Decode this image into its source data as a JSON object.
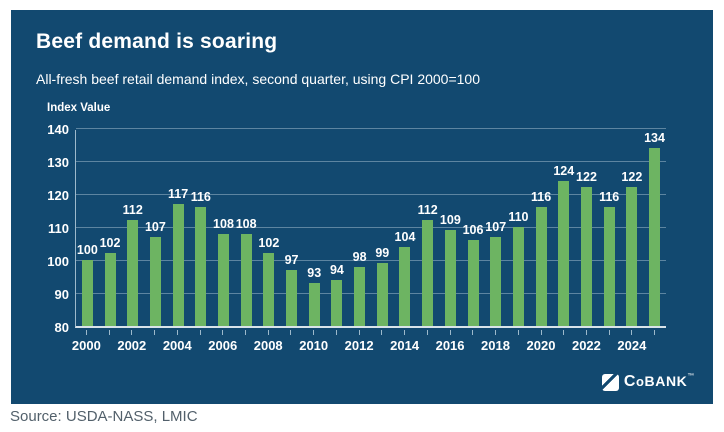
{
  "header": {
    "title": "Beef demand is soaring",
    "subtitle": "All-fresh beef retail demand index, second quarter, using CPI 2000=100"
  },
  "chart_data": {
    "type": "bar",
    "title": "Beef demand is soaring",
    "subtitle": "All-fresh beef retail demand index, second quarter, using CPI 2000=100",
    "ylabel": "Index Value",
    "xlabel": "",
    "x": [
      2000,
      2001,
      2002,
      2003,
      2004,
      2005,
      2006,
      2007,
      2008,
      2009,
      2010,
      2011,
      2012,
      2013,
      2014,
      2015,
      2016,
      2017,
      2018,
      2019,
      2020,
      2021,
      2022,
      2023,
      2024,
      2025
    ],
    "values": [
      100,
      102,
      112,
      107,
      117,
      116,
      108,
      108,
      102,
      97,
      93,
      94,
      98,
      99,
      104,
      112,
      109,
      106,
      107,
      110,
      116,
      124,
      122,
      116,
      122,
      134
    ],
    "ylim": [
      80,
      140
    ],
    "y_ticks": [
      80,
      90,
      100,
      110,
      120,
      130,
      140
    ],
    "x_tick_labels": [
      "2000",
      "2002",
      "2004",
      "2006",
      "2008",
      "2010",
      "2012",
      "2014",
      "2016",
      "2018",
      "2020",
      "2022",
      "2024"
    ],
    "grid": true,
    "legend": "none",
    "bar_color": "#6DB462",
    "background_color": "#124970",
    "label_color": "#FFFFFF"
  },
  "footer": {
    "source": "Source: USDA-NASS, LMIC"
  },
  "logo": {
    "c": "C",
    "o": "o",
    "bank": "BANK",
    "tm": "™",
    "icon": "cobank-diagonal-square-icon"
  }
}
